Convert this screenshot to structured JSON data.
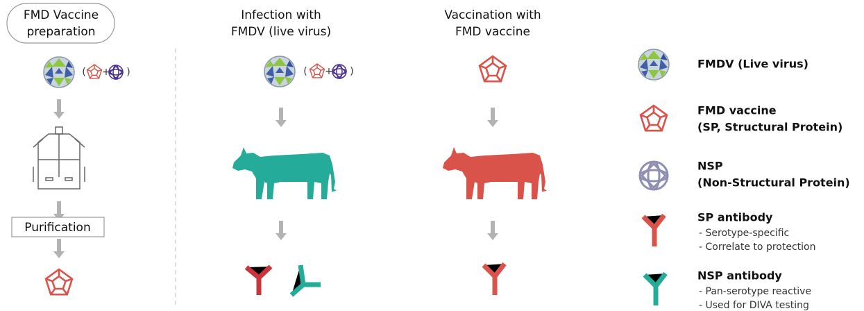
{
  "columns": [
    {
      "title_lines": [
        "FMD Vaccine",
        "preparation"
      ],
      "step": "Purification"
    },
    {
      "title_lines": [
        "Infection with",
        "FMDV (live virus)"
      ]
    },
    {
      "title_lines": [
        "Vaccination with",
        "FMD vaccine"
      ]
    }
  ],
  "symbols": [
    "(",
    "+",
    ")"
  ],
  "legend": [
    {
      "label_lines": [
        "FMDV (Live virus)"
      ]
    },
    {
      "label_lines": [
        "FMD vaccine",
        "(SP, Structural Protein)"
      ]
    },
    {
      "label_lines": [
        "NSP",
        "(Non-Structural Protein)"
      ]
    },
    {
      "label": "SP antibody",
      "notes": [
        "- Serotype-specific",
        "- Correlate to protection"
      ]
    },
    {
      "label": "NSP antibody",
      "notes": [
        "- Pan-serotype reactive",
        "- Used for DIVA testing"
      ]
    }
  ]
}
